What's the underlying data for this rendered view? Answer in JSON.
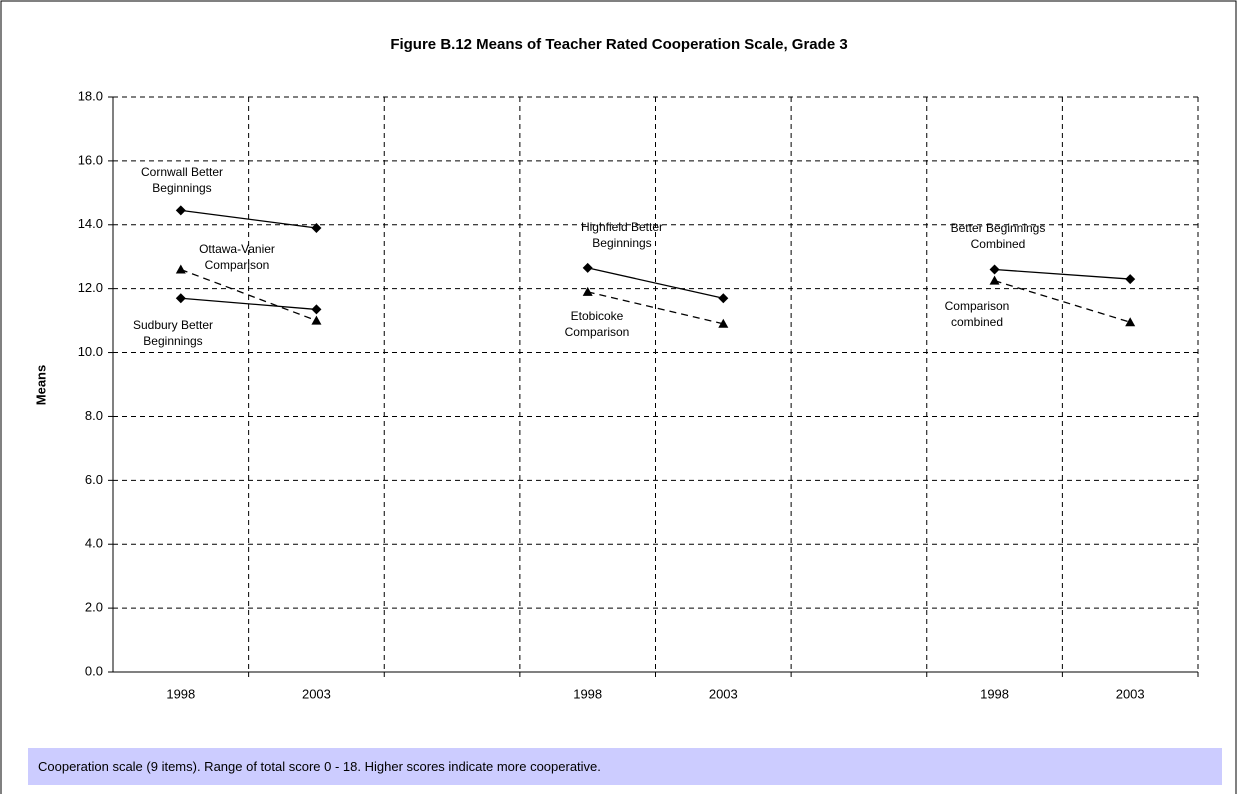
{
  "chart_data": {
    "type": "line",
    "title": "Figure B.12  Means of Teacher Rated Cooperation Scale, Grade 3",
    "y_label": "Means",
    "categories": [
      "1998",
      "2003",
      null,
      "1998",
      "2003",
      null,
      "1998",
      "2003"
    ],
    "ylim": [
      0,
      18
    ],
    "yticks": [
      {
        "value": 0,
        "label": "0.0"
      },
      {
        "value": 2,
        "label": "2.0"
      },
      {
        "value": 4,
        "label": "4.0"
      },
      {
        "value": 6,
        "label": "6.0"
      },
      {
        "value": 8,
        "label": "8.0"
      },
      {
        "value": 10,
        "label": "10.0"
      },
      {
        "value": 12,
        "label": "12.0"
      },
      {
        "value": 14,
        "label": "14.0"
      },
      {
        "value": 16,
        "label": "16.0"
      },
      {
        "value": 18,
        "label": "18.0"
      }
    ],
    "grid": true,
    "series": [
      {
        "name": "Cornwall Better Beginnings",
        "color": "#000000",
        "marker": "diamond",
        "dashed": false,
        "values": [
          14.45,
          13.9,
          null,
          null,
          null,
          null,
          null,
          null
        ]
      },
      {
        "name": "Ottawa-Vanier Comparison",
        "color": "#000000",
        "marker": "triangle",
        "dashed": true,
        "values": [
          12.6,
          11.0,
          null,
          null,
          null,
          null,
          null,
          null
        ]
      },
      {
        "name": "Sudbury Better Beginnings",
        "color": "#000000",
        "marker": "diamond",
        "dashed": false,
        "values": [
          11.7,
          11.35,
          null,
          null,
          null,
          null,
          null,
          null
        ]
      },
      {
        "name": "Highfield Better Beginnings",
        "color": "#000000",
        "marker": "diamond",
        "dashed": false,
        "values": [
          null,
          null,
          null,
          12.65,
          11.7,
          null,
          null,
          null
        ]
      },
      {
        "name": "Etobicoke Comparison",
        "color": "#000000",
        "marker": "triangle",
        "dashed": true,
        "values": [
          null,
          null,
          null,
          11.9,
          10.9,
          null,
          null,
          null
        ]
      },
      {
        "name": "Better Beginnings Combined",
        "color": "#000000",
        "marker": "diamond",
        "dashed": false,
        "values": [
          null,
          null,
          null,
          null,
          null,
          null,
          12.6,
          12.3
        ]
      },
      {
        "name": "Comparison combined",
        "color": "#000000",
        "marker": "triangle",
        "dashed": true,
        "values": [
          null,
          null,
          null,
          null,
          null,
          null,
          12.25,
          10.95
        ]
      }
    ],
    "note": "Cooperation scale (9 items). Range of total score 0 - 18. Higher scores indicate more cooperative."
  }
}
